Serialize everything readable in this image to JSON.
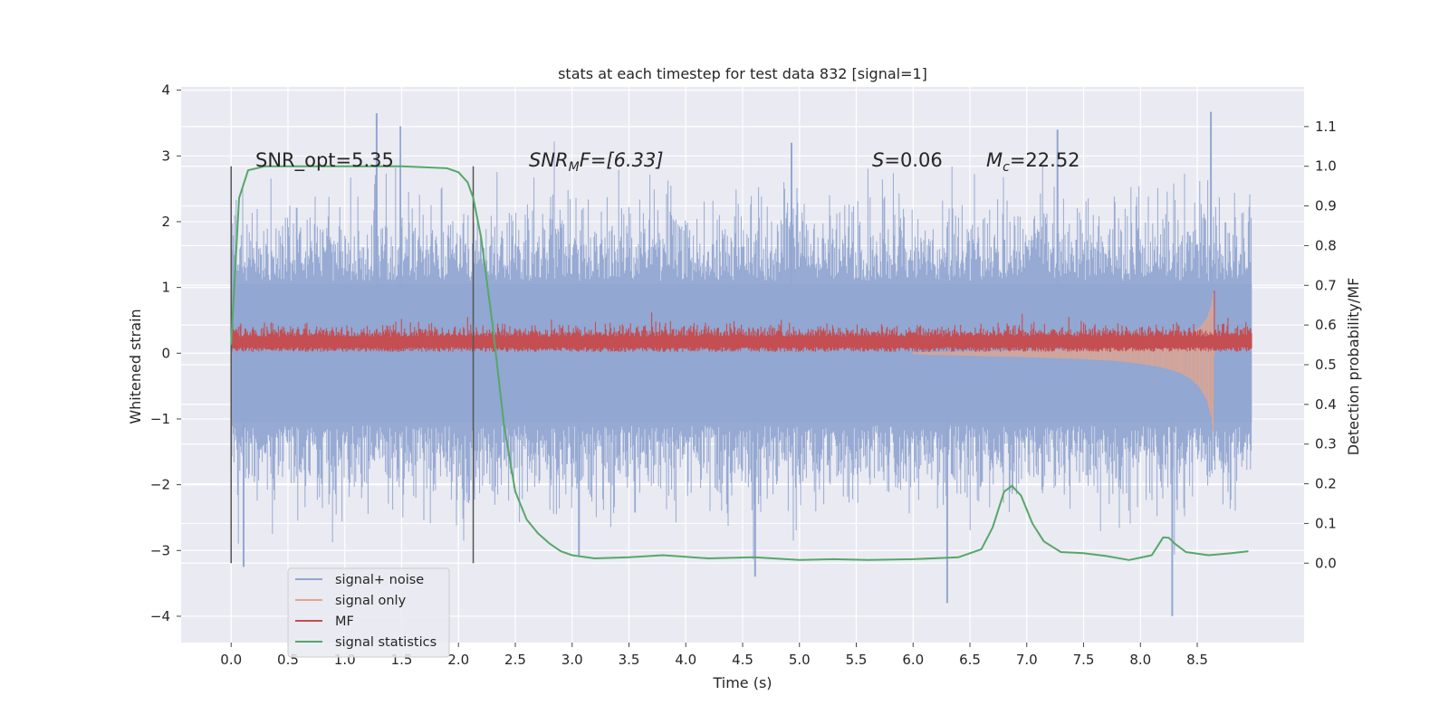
{
  "chart_data": {
    "type": "line",
    "title": "stats at each timestep for test data 832 [signal=1]",
    "xlabel": "Time (s)",
    "ylabel_left": "Whitened strain",
    "ylabel_right": "Detection probability/MF",
    "xlim": [
      -0.44,
      9.44
    ],
    "ylim_left": [
      -4.4,
      4.05
    ],
    "ylim_right": [
      -0.2,
      1.2
    ],
    "x_ticks": [
      0.0,
      0.5,
      1.0,
      1.5,
      2.0,
      2.5,
      3.0,
      3.5,
      4.0,
      4.5,
      5.0,
      5.5,
      6.0,
      6.5,
      7.0,
      7.5,
      8.0,
      8.5
    ],
    "x_tick_labels": [
      "0.0",
      "0.5",
      "1.0",
      "1.5",
      "2.0",
      "2.5",
      "3.0",
      "3.5",
      "4.0",
      "4.5",
      "5.0",
      "5.5",
      "6.0",
      "6.5",
      "7.0",
      "7.5",
      "8.0",
      "8.5"
    ],
    "y_left_ticks": [
      4,
      3,
      2,
      1,
      0,
      -1,
      -2,
      -3,
      -4
    ],
    "y_left_tick_labels": [
      "4",
      "3",
      "2",
      "1",
      "0",
      "−1",
      "−2",
      "−3",
      "−4"
    ],
    "y_right_ticks": [
      1.1,
      1.0,
      0.9,
      0.8,
      0.7,
      0.6,
      0.5,
      0.4,
      0.3,
      0.2,
      0.1,
      0.0
    ],
    "y_right_tick_labels": [
      "1.1",
      "1.0",
      "0.9",
      "0.8",
      "0.7",
      "0.6",
      "0.5",
      "0.4",
      "0.3",
      "0.2",
      "0.1",
      "0.0"
    ],
    "grid": true,
    "legend_position": "lower-left",
    "annotations": {
      "snr_opt": "SNR_opt=5.35",
      "snr_mf_main": "SNR",
      "snr_mf_sub": "M",
      "snr_mf_rest": "F=[6.33]",
      "s_label": "S",
      "s_rest": "=0.06",
      "mc_label": "M",
      "mc_sub": "c",
      "mc_rest": "=22.52"
    },
    "vertical_markers": [
      0.0,
      2.13
    ],
    "series": [
      {
        "name": "signal+ noise",
        "color": "#92a7d1",
        "axis": "left",
        "x_range": [
          0.0,
          8.98
        ],
        "envelope_peaks_upper": [
          [
            1.28,
            3.65
          ],
          [
            1.49,
            3.45
          ],
          [
            7.27,
            3.4
          ],
          [
            8.62,
            3.67
          ],
          [
            4.93,
            3.2
          ]
        ],
        "envelope_peaks_lower": [
          [
            0.11,
            -3.25
          ],
          [
            4.61,
            -3.4
          ],
          [
            6.3,
            -3.8
          ],
          [
            8.28,
            -4.0
          ],
          [
            3.06,
            -3.1
          ]
        ],
        "typical_amplitude": 2.0
      },
      {
        "name": "signal only",
        "color": "#e3a58c",
        "axis": "left",
        "x": [
          6.0,
          6.5,
          7.0,
          7.5,
          7.8,
          8.0,
          8.2,
          8.35,
          8.45,
          8.52,
          8.58,
          8.62,
          8.64,
          8.65
        ],
        "amplitude": [
          0.02,
          0.04,
          0.06,
          0.09,
          0.12,
          0.16,
          0.22,
          0.3,
          0.4,
          0.52,
          0.7,
          0.95,
          1.2,
          0.0
        ]
      },
      {
        "name": "MF",
        "color": "#c44e52",
        "axis": "left",
        "x_range": [
          0.0,
          8.98
        ],
        "baseline": 0.2,
        "typical_amplitude": 0.18,
        "peaks": [
          [
            6.96,
            0.6
          ],
          [
            8.65,
            0.95
          ],
          [
            3.7,
            0.62
          ],
          [
            7.37,
            0.55
          ],
          [
            2.08,
            0.55
          ]
        ]
      },
      {
        "name": "signal statistics",
        "color": "#55a868",
        "axis": "right",
        "x": [
          0.0,
          0.07,
          0.15,
          0.3,
          0.6,
          1.0,
          1.5,
          1.9,
          2.0,
          2.08,
          2.13,
          2.2,
          2.3,
          2.4,
          2.5,
          2.6,
          2.7,
          2.8,
          2.9,
          3.0,
          3.2,
          3.5,
          3.8,
          4.2,
          4.6,
          5.0,
          5.3,
          5.6,
          6.0,
          6.4,
          6.6,
          6.7,
          6.8,
          6.87,
          6.95,
          7.05,
          7.15,
          7.3,
          7.5,
          7.7,
          7.9,
          8.1,
          8.2,
          8.25,
          8.3,
          8.4,
          8.6,
          8.8,
          8.95
        ],
        "y": [
          0.55,
          0.92,
          0.99,
          1.0,
          1.0,
          1.0,
          1.0,
          0.995,
          0.985,
          0.96,
          0.92,
          0.82,
          0.6,
          0.35,
          0.18,
          0.11,
          0.075,
          0.05,
          0.03,
          0.02,
          0.012,
          0.015,
          0.02,
          0.012,
          0.015,
          0.008,
          0.01,
          0.008,
          0.01,
          0.015,
          0.035,
          0.09,
          0.18,
          0.195,
          0.17,
          0.1,
          0.055,
          0.028,
          0.025,
          0.018,
          0.008,
          0.02,
          0.065,
          0.064,
          0.05,
          0.028,
          0.02,
          0.025,
          0.03
        ]
      }
    ]
  }
}
